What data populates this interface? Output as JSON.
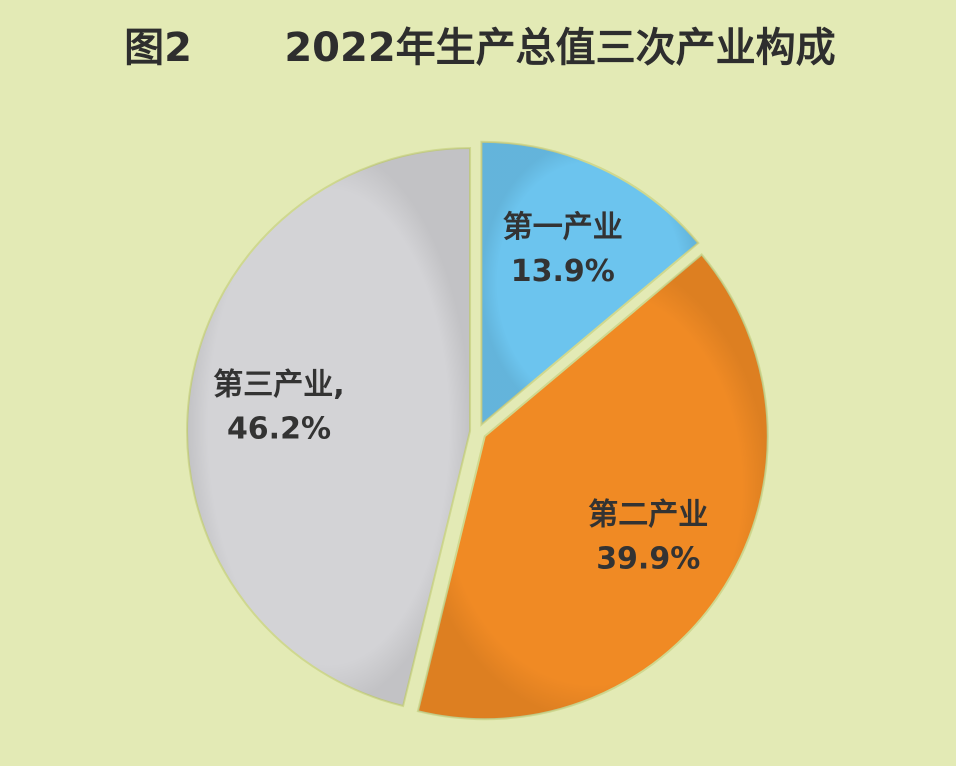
{
  "chart_data": {
    "type": "pie",
    "figure_number": "图2",
    "title": "2022年生产总值三次产业构成",
    "categories": [
      "第一产业",
      "第二产业",
      "第三产业,"
    ],
    "values": [
      13.9,
      39.9,
      46.2
    ],
    "value_labels": [
      "13.9%",
      "39.9%",
      "46.2%"
    ],
    "colors": [
      "#6cc4ee",
      "#f08a24",
      "#d3d3d6"
    ],
    "start_angle": 0,
    "direction": "clockwise"
  }
}
